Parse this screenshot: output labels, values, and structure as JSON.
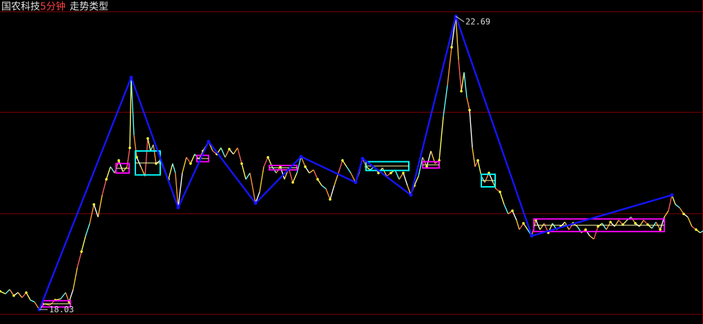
{
  "header": {
    "stock_name": "国农科技",
    "period": "5分钟",
    "indicator": "走势类型"
  },
  "colors": {
    "background": "#000000",
    "grid": "#8b0000",
    "stroke": "#1414ff",
    "price_line": "#ffffaa",
    "box_pivot_a": "#ff00ff",
    "box_pivot_b": "#00ffff",
    "annotation": "#d8d8d8"
  },
  "chart_data": {
    "type": "line",
    "title": "",
    "xlabel": "",
    "ylabel": "",
    "grid": true,
    "ylim": [
      17.8,
      22.95
    ],
    "xlim": [
      0,
      1018
    ],
    "annotations": [
      {
        "text": "22.69",
        "x": 660,
        "y": 22.69,
        "kind": "high"
      },
      {
        "text": "18.03",
        "x": 57,
        "y": 18.03,
        "kind": "low"
      }
    ],
    "strokes": {
      "name": "",
      "points": [
        [
          57,
          18.03
        ],
        [
          190,
          21.72
        ],
        [
          258,
          19.65
        ],
        [
          302,
          20.7
        ],
        [
          370,
          19.72
        ],
        [
          436,
          20.46
        ],
        [
          515,
          20.05
        ],
        [
          525,
          20.43
        ],
        [
          595,
          19.85
        ],
        [
          660,
          22.69
        ],
        [
          770,
          19.2
        ],
        [
          973,
          19.85
        ]
      ]
    },
    "pivot_boxes": [
      {
        "type": "magenta",
        "x0": 62,
        "x1": 102,
        "low": 18.07,
        "high": 18.17
      },
      {
        "type": "magenta",
        "x0": 168,
        "x1": 187,
        "low": 20.2,
        "high": 20.35
      },
      {
        "type": "cyan",
        "x0": 196,
        "x1": 232,
        "low": 20.17,
        "high": 20.55
      },
      {
        "type": "magenta",
        "x0": 285,
        "x1": 302,
        "low": 20.38,
        "high": 20.48
      },
      {
        "type": "magenta",
        "x0": 390,
        "x1": 430,
        "low": 20.25,
        "high": 20.32
      },
      {
        "type": "cyan",
        "x0": 530,
        "x1": 592,
        "low": 20.24,
        "high": 20.38
      },
      {
        "type": "magenta",
        "x0": 612,
        "x1": 636,
        "low": 20.28,
        "high": 20.38
      },
      {
        "type": "cyan",
        "x0": 697,
        "x1": 717,
        "low": 19.98,
        "high": 20.18
      },
      {
        "type": "magenta",
        "x0": 773,
        "x1": 962,
        "low": 19.27,
        "high": 19.47
      }
    ],
    "price_series": {
      "name": "",
      "points": [
        [
          0,
          18.32
        ],
        [
          8,
          18.28
        ],
        [
          14,
          18.35
        ],
        [
          20,
          18.25
        ],
        [
          26,
          18.3
        ],
        [
          32,
          18.22
        ],
        [
          38,
          18.3
        ],
        [
          44,
          18.18
        ],
        [
          50,
          18.15
        ],
        [
          57,
          18.03
        ],
        [
          64,
          18.12
        ],
        [
          72,
          18.1
        ],
        [
          80,
          18.18
        ],
        [
          88,
          18.2
        ],
        [
          95,
          18.3
        ],
        [
          100,
          18.15
        ],
        [
          106,
          18.35
        ],
        [
          112,
          18.7
        ],
        [
          118,
          18.95
        ],
        [
          124,
          19.2
        ],
        [
          130,
          19.4
        ],
        [
          136,
          19.7
        ],
        [
          142,
          19.5
        ],
        [
          148,
          19.85
        ],
        [
          154,
          20.1
        ],
        [
          160,
          20.3
        ],
        [
          166,
          20.2
        ],
        [
          172,
          20.4
        ],
        [
          178,
          20.22
        ],
        [
          184,
          20.3
        ],
        [
          188,
          20.6
        ],
        [
          190,
          21.72
        ],
        [
          194,
          20.8
        ],
        [
          198,
          20.45
        ],
        [
          204,
          20.3
        ],
        [
          210,
          20.15
        ],
        [
          214,
          20.75
        ],
        [
          218,
          20.55
        ],
        [
          222,
          20.65
        ],
        [
          226,
          20.35
        ],
        [
          232,
          20.4
        ],
        [
          238,
          20.25
        ],
        [
          244,
          20.1
        ],
        [
          250,
          20.35
        ],
        [
          254,
          20.2
        ],
        [
          258,
          19.65
        ],
        [
          264,
          20.2
        ],
        [
          270,
          20.45
        ],
        [
          276,
          20.35
        ],
        [
          282,
          20.5
        ],
        [
          288,
          20.42
        ],
        [
          294,
          20.55
        ],
        [
          302,
          20.7
        ],
        [
          308,
          20.55
        ],
        [
          314,
          20.5
        ],
        [
          320,
          20.6
        ],
        [
          326,
          20.45
        ],
        [
          332,
          20.58
        ],
        [
          338,
          20.5
        ],
        [
          344,
          20.6
        ],
        [
          350,
          20.35
        ],
        [
          356,
          20.1
        ],
        [
          362,
          20.2
        ],
        [
          370,
          19.72
        ],
        [
          376,
          19.9
        ],
        [
          382,
          20.3
        ],
        [
          388,
          20.45
        ],
        [
          394,
          20.3
        ],
        [
          400,
          20.2
        ],
        [
          406,
          20.3
        ],
        [
          412,
          20.1
        ],
        [
          418,
          20.28
        ],
        [
          424,
          20.05
        ],
        [
          430,
          20.2
        ],
        [
          436,
          20.46
        ],
        [
          442,
          20.3
        ],
        [
          448,
          20.2
        ],
        [
          454,
          20.25
        ],
        [
          460,
          20.1
        ],
        [
          466,
          20.0
        ],
        [
          472,
          19.95
        ],
        [
          478,
          19.78
        ],
        [
          484,
          20.0
        ],
        [
          490,
          20.2
        ],
        [
          496,
          20.4
        ],
        [
          502,
          20.3
        ],
        [
          508,
          20.2
        ],
        [
          515,
          20.05
        ],
        [
          520,
          20.2
        ],
        [
          525,
          20.43
        ],
        [
          530,
          20.3
        ],
        [
          536,
          20.25
        ],
        [
          542,
          20.3
        ],
        [
          548,
          20.2
        ],
        [
          554,
          20.28
        ],
        [
          560,
          20.15
        ],
        [
          566,
          20.2
        ],
        [
          572,
          20.25
        ],
        [
          578,
          20.1
        ],
        [
          584,
          20.2
        ],
        [
          590,
          20.0
        ],
        [
          595,
          19.85
        ],
        [
          600,
          20.0
        ],
        [
          606,
          20.15
        ],
        [
          612,
          20.45
        ],
        [
          618,
          20.3
        ],
        [
          624,
          20.55
        ],
        [
          630,
          20.35
        ],
        [
          636,
          20.4
        ],
        [
          642,
          21.1
        ],
        [
          648,
          21.6
        ],
        [
          654,
          22.2
        ],
        [
          660,
          22.69
        ],
        [
          664,
          22.0
        ],
        [
          668,
          21.5
        ],
        [
          672,
          21.8
        ],
        [
          676,
          21.4
        ],
        [
          680,
          21.2
        ],
        [
          684,
          20.6
        ],
        [
          688,
          20.3
        ],
        [
          692,
          20.4
        ],
        [
          697,
          20.15
        ],
        [
          702,
          20.05
        ],
        [
          708,
          20.2
        ],
        [
          714,
          20.05
        ],
        [
          718,
          19.95
        ],
        [
          724,
          19.9
        ],
        [
          730,
          19.7
        ],
        [
          736,
          19.55
        ],
        [
          742,
          19.6
        ],
        [
          748,
          19.45
        ],
        [
          752,
          19.3
        ],
        [
          758,
          19.4
        ],
        [
          764,
          19.3
        ],
        [
          770,
          19.2
        ],
        [
          776,
          19.45
        ],
        [
          782,
          19.3
        ],
        [
          788,
          19.4
        ],
        [
          794,
          19.25
        ],
        [
          800,
          19.4
        ],
        [
          806,
          19.3
        ],
        [
          812,
          19.35
        ],
        [
          818,
          19.42
        ],
        [
          824,
          19.3
        ],
        [
          830,
          19.4
        ],
        [
          836,
          19.35
        ],
        [
          842,
          19.25
        ],
        [
          848,
          19.3
        ],
        [
          854,
          19.2
        ],
        [
          860,
          19.15
        ],
        [
          866,
          19.35
        ],
        [
          872,
          19.4
        ],
        [
          878,
          19.3
        ],
        [
          884,
          19.42
        ],
        [
          890,
          19.35
        ],
        [
          896,
          19.45
        ],
        [
          902,
          19.38
        ],
        [
          908,
          19.45
        ],
        [
          914,
          19.5
        ],
        [
          920,
          19.4
        ],
        [
          926,
          19.35
        ],
        [
          932,
          19.45
        ],
        [
          938,
          19.38
        ],
        [
          944,
          19.32
        ],
        [
          950,
          19.42
        ],
        [
          956,
          19.3
        ],
        [
          962,
          19.5
        ],
        [
          968,
          19.6
        ],
        [
          973,
          19.85
        ],
        [
          978,
          19.7
        ],
        [
          984,
          19.65
        ],
        [
          990,
          19.55
        ],
        [
          996,
          19.5
        ],
        [
          1002,
          19.35
        ],
        [
          1008,
          19.3
        ],
        [
          1014,
          19.25
        ],
        [
          1018,
          19.28
        ]
      ]
    }
  }
}
